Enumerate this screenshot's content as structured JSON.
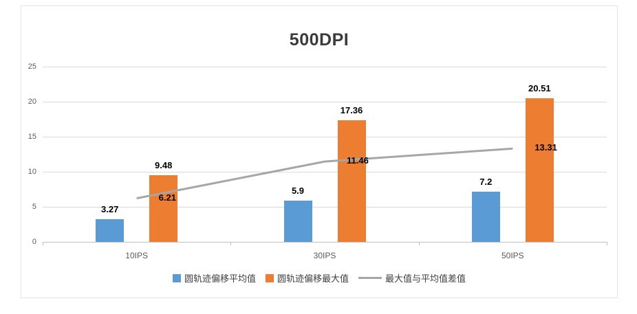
{
  "title": "500DPI",
  "colors": {
    "bar_average": "#5B9BD5",
    "bar_max": "#ED7D31",
    "difference_line": "#A6A6A6",
    "grid": "#D9D9D9",
    "axis_line": "#BFBFBF",
    "axis_text": "#595959",
    "title_text": "#3B3B3B",
    "label_text": "#000000",
    "border": "#E3E3E3"
  },
  "chart_data": {
    "type": "bar",
    "title": "500DPI",
    "categories": [
      "10IPS",
      "30IPS",
      "50IPS"
    ],
    "series": [
      {
        "name": "圆轨迹偏移平均值",
        "type": "bar",
        "color": "#5B9BD5",
        "values": [
          3.27,
          5.9,
          7.2
        ]
      },
      {
        "name": "圆轨迹偏移最大值",
        "type": "bar",
        "color": "#ED7D31",
        "values": [
          9.48,
          17.36,
          20.51
        ]
      },
      {
        "name": "最大值与平均值差值",
        "type": "line",
        "color": "#A6A6A6",
        "values": [
          6.21,
          11.46,
          13.31
        ]
      }
    ],
    "xlabel": "",
    "ylabel": "",
    "ylim": [
      0,
      25
    ],
    "yticks": [
      0,
      5,
      10,
      15,
      20,
      25
    ],
    "grid": true,
    "legend_position": "bottom",
    "data_labels": true
  }
}
